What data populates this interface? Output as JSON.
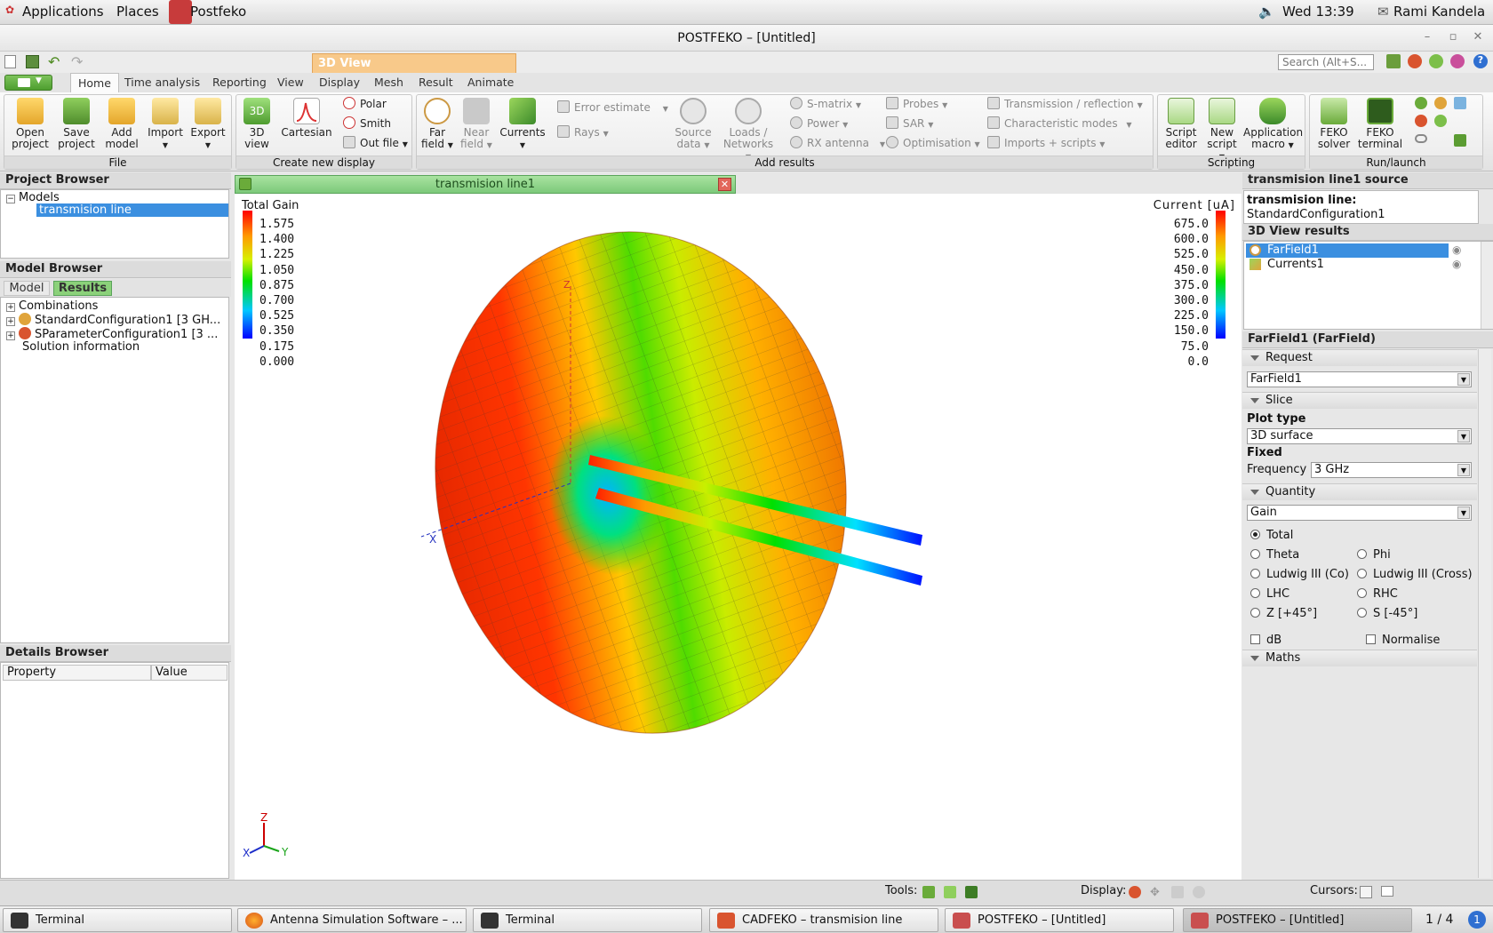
{
  "topbar": {
    "applications": "Applications",
    "places": "Places",
    "app": "Postfeko",
    "clock": "Wed 13:39",
    "user": "Rami Kandela"
  },
  "window": {
    "title": "POSTFEKO – [Untitled]"
  },
  "ribbon": {
    "context_tab": "3D View",
    "tabs": [
      "Home",
      "Time analysis",
      "Reporting",
      "View",
      "Display",
      "Mesh",
      "Result",
      "Animate"
    ],
    "search_placeholder": "Search (Alt+S...",
    "groups": {
      "file": "File",
      "create": "Create new display",
      "add": "Add results",
      "scripting": "Scripting",
      "run": "Run/launch"
    },
    "file": {
      "open": "Open project",
      "save": "Save project",
      "add_model": "Add model",
      "import": "Import",
      "export": "Export"
    },
    "create": {
      "view3d": "3D view",
      "cartesian": "Cartesian",
      "polar": "Polar",
      "smith": "Smith",
      "outfile": "Out file"
    },
    "add": {
      "far_field": "Far field",
      "near_field": "Near field",
      "currents": "Currents",
      "error_estimate": "Error estimate",
      "rays": "Rays",
      "source_data": "Source data",
      "loads_networks": "Loads / Networks",
      "smatrix": "S-matrix",
      "power": "Power",
      "rx_antenna": "RX antenna",
      "probes": "Probes",
      "sar": "SAR",
      "optimisation": "Optimisation",
      "transmission": "Transmission / reflection",
      "characteristic": "Characteristic  modes",
      "imports_scripts": "Imports + scripts"
    },
    "scripting": {
      "script_editor": "Script editor",
      "new_script": "New script",
      "app_macro": "Application macro"
    },
    "run": {
      "feko_solver": "FEKO solver",
      "feko_terminal": "FEKO terminal"
    }
  },
  "project_browser": {
    "title": "Project Browser",
    "models": "Models",
    "item": "transmision line"
  },
  "model_browser": {
    "title": "Model Browser",
    "tab_model": "Model",
    "tab_results": "Results",
    "items": [
      "Combinations",
      "StandardConfiguration1 [3 GH...",
      "SParameterConfiguration1  [3 ...",
      "Solution information"
    ]
  },
  "details_browser": {
    "title": "Details Browser",
    "col_property": "Property",
    "col_value": "Value"
  },
  "viewport": {
    "tab_title": "transmision line1",
    "gain_legend": {
      "title": "Total Gain",
      "values": [
        "1.575",
        "1.400",
        "1.225",
        "1.050",
        "0.875",
        "0.700",
        "0.525",
        "0.350",
        "0.175",
        "0.000"
      ]
    },
    "current_legend": {
      "title": "Current [uA]",
      "values": [
        "675.0",
        "600.0",
        "525.0",
        "450.0",
        "375.0",
        "300.0",
        "225.0",
        "150.0",
        "75.0",
        "0.0"
      ]
    },
    "axes": {
      "x": "X",
      "y": "Y",
      "z": "Z"
    },
    "scene_axes": {
      "x": "X",
      "z": "Z"
    }
  },
  "right_panel": {
    "source_title": "transmision line1 source",
    "source_name": "transmision line:",
    "source_config": "StandardConfiguration1",
    "results_title": "3D View results",
    "results": [
      "FarField1",
      "Currents1"
    ],
    "props_title": "FarField1 (FarField)",
    "request_label": "Request",
    "request_value": "FarField1",
    "slice_label": "Slice",
    "plot_type_label": "Plot type",
    "plot_type_value": "3D surface",
    "fixed_label": "Fixed",
    "frequency_label": "Frequency",
    "frequency_value": "3 GHz",
    "quantity_label": "Quantity",
    "quantity_value": "Gain",
    "radios": [
      "Total",
      "Theta",
      "Phi",
      "Ludwig III (Co)",
      "Ludwig III (Cross)",
      "LHC",
      "RHC",
      "Z [+45°]",
      "S [-45°]"
    ],
    "db": "dB",
    "normalise": "Normalise",
    "maths_label": "Maths"
  },
  "statusbar": {
    "tools": "Tools:",
    "display": "Display:",
    "cursors": "Cursors:"
  },
  "taskbar": {
    "items": [
      "Terminal",
      "Antenna Simulation Software – ...",
      "Terminal",
      "CADFEKO – transmision line",
      "POSTFEKO – [Untitled]",
      "POSTFEKO – [Untitled]"
    ],
    "workspace": "1 / 4"
  }
}
